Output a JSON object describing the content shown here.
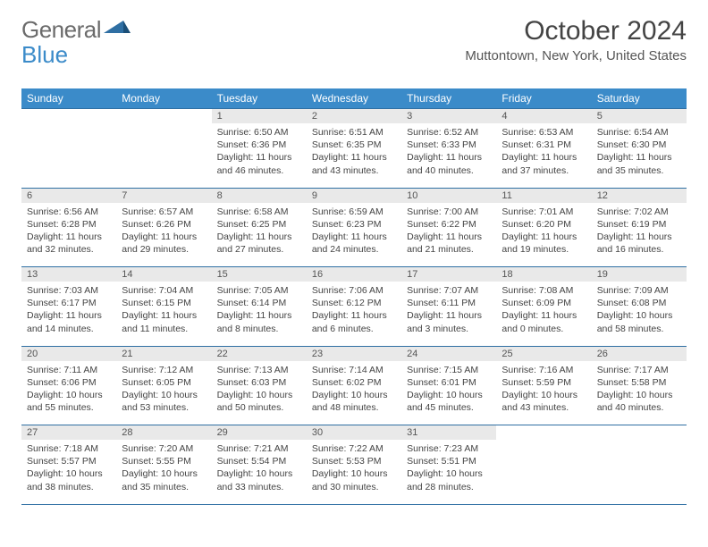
{
  "brand": {
    "part1": "General",
    "part2": "Blue"
  },
  "title": "October 2024",
  "subtitle": "Muttontown, New York, United States",
  "header_bg": "#3b8bc9",
  "rule_color": "#2f6fa3",
  "daynum_bg": "#e9e9e9",
  "daysOfWeek": [
    "Sunday",
    "Monday",
    "Tuesday",
    "Wednesday",
    "Thursday",
    "Friday",
    "Saturday"
  ],
  "weeks": [
    [
      null,
      null,
      {
        "n": "1",
        "sr": "Sunrise: 6:50 AM",
        "ss": "Sunset: 6:36 PM",
        "d1": "Daylight: 11 hours",
        "d2": "and 46 minutes."
      },
      {
        "n": "2",
        "sr": "Sunrise: 6:51 AM",
        "ss": "Sunset: 6:35 PM",
        "d1": "Daylight: 11 hours",
        "d2": "and 43 minutes."
      },
      {
        "n": "3",
        "sr": "Sunrise: 6:52 AM",
        "ss": "Sunset: 6:33 PM",
        "d1": "Daylight: 11 hours",
        "d2": "and 40 minutes."
      },
      {
        "n": "4",
        "sr": "Sunrise: 6:53 AM",
        "ss": "Sunset: 6:31 PM",
        "d1": "Daylight: 11 hours",
        "d2": "and 37 minutes."
      },
      {
        "n": "5",
        "sr": "Sunrise: 6:54 AM",
        "ss": "Sunset: 6:30 PM",
        "d1": "Daylight: 11 hours",
        "d2": "and 35 minutes."
      }
    ],
    [
      {
        "n": "6",
        "sr": "Sunrise: 6:56 AM",
        "ss": "Sunset: 6:28 PM",
        "d1": "Daylight: 11 hours",
        "d2": "and 32 minutes."
      },
      {
        "n": "7",
        "sr": "Sunrise: 6:57 AM",
        "ss": "Sunset: 6:26 PM",
        "d1": "Daylight: 11 hours",
        "d2": "and 29 minutes."
      },
      {
        "n": "8",
        "sr": "Sunrise: 6:58 AM",
        "ss": "Sunset: 6:25 PM",
        "d1": "Daylight: 11 hours",
        "d2": "and 27 minutes."
      },
      {
        "n": "9",
        "sr": "Sunrise: 6:59 AM",
        "ss": "Sunset: 6:23 PM",
        "d1": "Daylight: 11 hours",
        "d2": "and 24 minutes."
      },
      {
        "n": "10",
        "sr": "Sunrise: 7:00 AM",
        "ss": "Sunset: 6:22 PM",
        "d1": "Daylight: 11 hours",
        "d2": "and 21 minutes."
      },
      {
        "n": "11",
        "sr": "Sunrise: 7:01 AM",
        "ss": "Sunset: 6:20 PM",
        "d1": "Daylight: 11 hours",
        "d2": "and 19 minutes."
      },
      {
        "n": "12",
        "sr": "Sunrise: 7:02 AM",
        "ss": "Sunset: 6:19 PM",
        "d1": "Daylight: 11 hours",
        "d2": "and 16 minutes."
      }
    ],
    [
      {
        "n": "13",
        "sr": "Sunrise: 7:03 AM",
        "ss": "Sunset: 6:17 PM",
        "d1": "Daylight: 11 hours",
        "d2": "and 14 minutes."
      },
      {
        "n": "14",
        "sr": "Sunrise: 7:04 AM",
        "ss": "Sunset: 6:15 PM",
        "d1": "Daylight: 11 hours",
        "d2": "and 11 minutes."
      },
      {
        "n": "15",
        "sr": "Sunrise: 7:05 AM",
        "ss": "Sunset: 6:14 PM",
        "d1": "Daylight: 11 hours",
        "d2": "and 8 minutes."
      },
      {
        "n": "16",
        "sr": "Sunrise: 7:06 AM",
        "ss": "Sunset: 6:12 PM",
        "d1": "Daylight: 11 hours",
        "d2": "and 6 minutes."
      },
      {
        "n": "17",
        "sr": "Sunrise: 7:07 AM",
        "ss": "Sunset: 6:11 PM",
        "d1": "Daylight: 11 hours",
        "d2": "and 3 minutes."
      },
      {
        "n": "18",
        "sr": "Sunrise: 7:08 AM",
        "ss": "Sunset: 6:09 PM",
        "d1": "Daylight: 11 hours",
        "d2": "and 0 minutes."
      },
      {
        "n": "19",
        "sr": "Sunrise: 7:09 AM",
        "ss": "Sunset: 6:08 PM",
        "d1": "Daylight: 10 hours",
        "d2": "and 58 minutes."
      }
    ],
    [
      {
        "n": "20",
        "sr": "Sunrise: 7:11 AM",
        "ss": "Sunset: 6:06 PM",
        "d1": "Daylight: 10 hours",
        "d2": "and 55 minutes."
      },
      {
        "n": "21",
        "sr": "Sunrise: 7:12 AM",
        "ss": "Sunset: 6:05 PM",
        "d1": "Daylight: 10 hours",
        "d2": "and 53 minutes."
      },
      {
        "n": "22",
        "sr": "Sunrise: 7:13 AM",
        "ss": "Sunset: 6:03 PM",
        "d1": "Daylight: 10 hours",
        "d2": "and 50 minutes."
      },
      {
        "n": "23",
        "sr": "Sunrise: 7:14 AM",
        "ss": "Sunset: 6:02 PM",
        "d1": "Daylight: 10 hours",
        "d2": "and 48 minutes."
      },
      {
        "n": "24",
        "sr": "Sunrise: 7:15 AM",
        "ss": "Sunset: 6:01 PM",
        "d1": "Daylight: 10 hours",
        "d2": "and 45 minutes."
      },
      {
        "n": "25",
        "sr": "Sunrise: 7:16 AM",
        "ss": "Sunset: 5:59 PM",
        "d1": "Daylight: 10 hours",
        "d2": "and 43 minutes."
      },
      {
        "n": "26",
        "sr": "Sunrise: 7:17 AM",
        "ss": "Sunset: 5:58 PM",
        "d1": "Daylight: 10 hours",
        "d2": "and 40 minutes."
      }
    ],
    [
      {
        "n": "27",
        "sr": "Sunrise: 7:18 AM",
        "ss": "Sunset: 5:57 PM",
        "d1": "Daylight: 10 hours",
        "d2": "and 38 minutes."
      },
      {
        "n": "28",
        "sr": "Sunrise: 7:20 AM",
        "ss": "Sunset: 5:55 PM",
        "d1": "Daylight: 10 hours",
        "d2": "and 35 minutes."
      },
      {
        "n": "29",
        "sr": "Sunrise: 7:21 AM",
        "ss": "Sunset: 5:54 PM",
        "d1": "Daylight: 10 hours",
        "d2": "and 33 minutes."
      },
      {
        "n": "30",
        "sr": "Sunrise: 7:22 AM",
        "ss": "Sunset: 5:53 PM",
        "d1": "Daylight: 10 hours",
        "d2": "and 30 minutes."
      },
      {
        "n": "31",
        "sr": "Sunrise: 7:23 AM",
        "ss": "Sunset: 5:51 PM",
        "d1": "Daylight: 10 hours",
        "d2": "and 28 minutes."
      },
      null,
      null
    ]
  ]
}
